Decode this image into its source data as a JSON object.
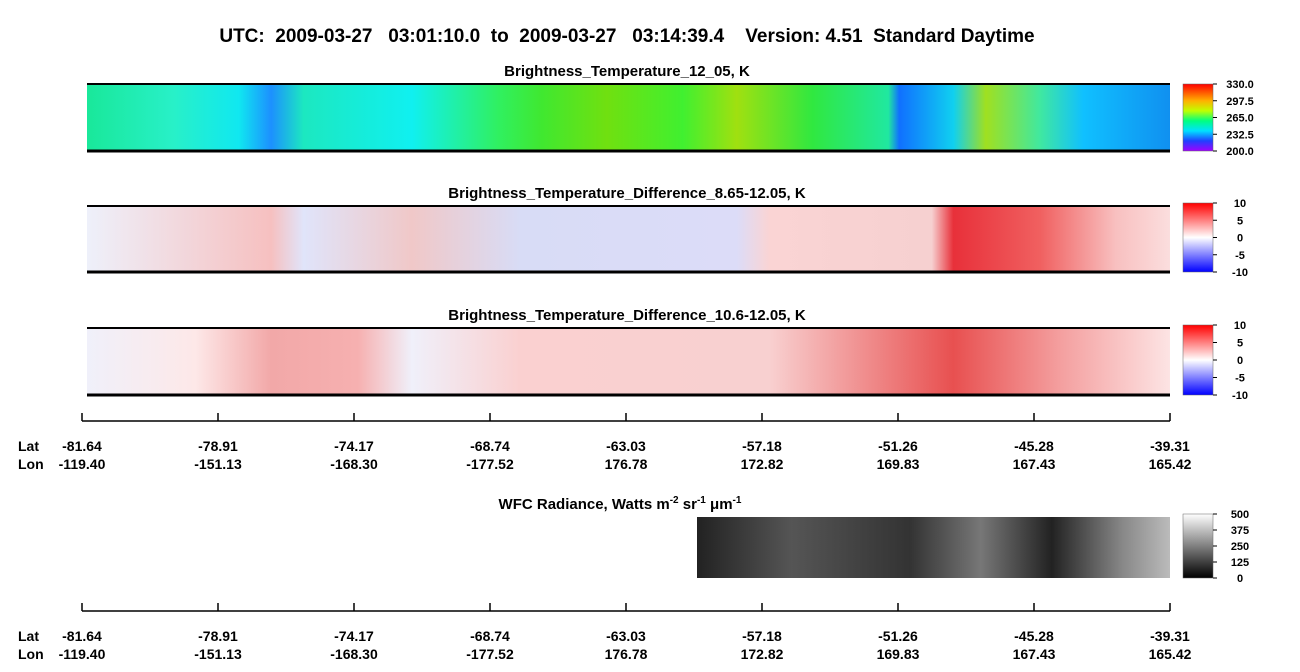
{
  "title": "UTC:  2009-03-27   03:01:10.0  to  2009-03-27   03:14:39.4    Version: 4.51  Standard Daytime",
  "chart_data": [
    {
      "type": "heatmap",
      "title": "Brightness_Temperature_12_05, K",
      "clim": [
        200,
        330
      ],
      "cticks": [
        {
          "value": 330,
          "label": "330.0"
        },
        {
          "value": 297.5,
          "label": "297.5"
        },
        {
          "value": 265,
          "label": "265.0"
        },
        {
          "value": 232.5,
          "label": "232.5"
        },
        {
          "value": 200,
          "label": "200.0"
        }
      ]
    },
    {
      "type": "heatmap",
      "title": "Brightness_Temperature_Difference_8.65-12.05, K",
      "clim": [
        -10,
        10
      ],
      "cticks": [
        10,
        5,
        0,
        -5,
        -10
      ]
    },
    {
      "type": "heatmap",
      "title": "Brightness_Temperature_Difference_10.6-12.05, K",
      "clim": [
        -10,
        10
      ],
      "cticks": [
        10,
        5,
        0,
        -5,
        -10
      ]
    },
    {
      "type": "heatmap",
      "title_parts": [
        "WFC Radiance, Watts m",
        "-2",
        " sr",
        "-1",
        " μm",
        "-1"
      ],
      "clim": [
        0,
        500
      ],
      "cticks": [
        500,
        375,
        250,
        125,
        0
      ]
    }
  ],
  "axes": [
    {
      "lat_label": "Lat",
      "lon_label": "Lon",
      "lat": [
        "-81.64",
        "-78.91",
        "-74.17",
        "-68.74",
        "-63.03",
        "-57.18",
        "-51.26",
        "-45.28",
        "-39.31"
      ],
      "lon": [
        "-119.40",
        "-151.13",
        "-168.30",
        "-177.52",
        "176.78",
        "172.82",
        "169.83",
        "167.43",
        "165.42"
      ]
    },
    {
      "lat_label": "Lat",
      "lon_label": "Lon",
      "lat": [
        "-81.64",
        "-78.91",
        "-74.17",
        "-68.74",
        "-63.03",
        "-57.18",
        "-51.26",
        "-45.28",
        "-39.31"
      ],
      "lon": [
        "-119.40",
        "-151.13",
        "-168.30",
        "-177.52",
        "176.78",
        "172.82",
        "169.83",
        "167.43",
        "165.42"
      ]
    }
  ]
}
